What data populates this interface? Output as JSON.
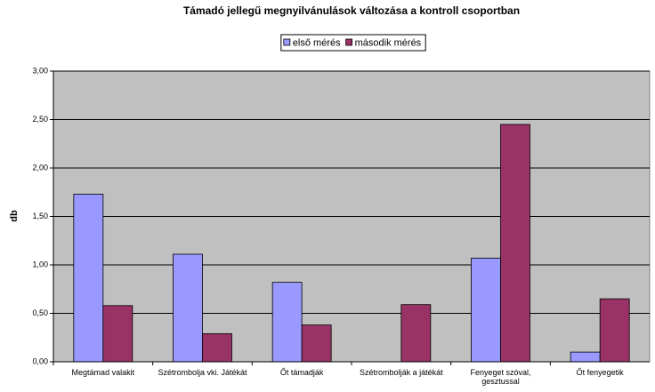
{
  "chart_data": {
    "type": "bar",
    "title": "Támadó jellegű megnyilvánulások változása a kontroll csoportban",
    "y_label": "db",
    "categories": [
      "Megtámad valakit",
      "Szétrombolja vki. Játékát",
      "Őt támadják",
      "Szétrombolják a játékát",
      "Fenyeget szóval, gesztussal",
      "Őt fenyegetik"
    ],
    "series": [
      {
        "name": "első mérés",
        "color": "#9999ff",
        "values": [
          1.73,
          1.11,
          0.82,
          0,
          1.07,
          0.1
        ]
      },
      {
        "name": "második mérés",
        "color": "#993366",
        "values": [
          0.58,
          0.29,
          0.38,
          0.59,
          2.45,
          0.65
        ]
      }
    ],
    "ylim": [
      0,
      3
    ],
    "yticks": [
      {
        "value": 0,
        "label": "0,00"
      },
      {
        "value": 0.5,
        "label": "0,50"
      },
      {
        "value": 1,
        "label": "1,00"
      },
      {
        "value": 1.5,
        "label": "1,50"
      },
      {
        "value": 2,
        "label": "2,00"
      },
      {
        "value": 2.5,
        "label": "2,50"
      },
      {
        "value": 3,
        "label": "3,00"
      }
    ],
    "grid": true,
    "legend": "top"
  }
}
